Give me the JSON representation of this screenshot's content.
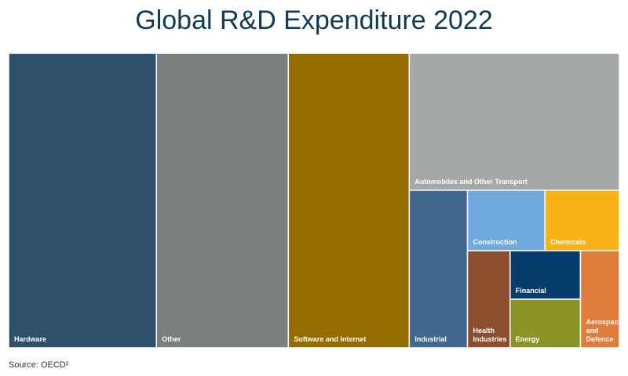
{
  "chart_data": {
    "type": "treemap",
    "title": "Global R&D Expenditure 2022",
    "source": "Source: OECD²",
    "categories": [
      "Hardware",
      "Other",
      "Software and Internet",
      "Automobiles and Other Transport",
      "Industrial",
      "Construction",
      "Chemicals",
      "Health Industries",
      "Financial",
      "Energy",
      "Aerospace and Defence"
    ],
    "values": [
      24.2,
      21.6,
      19.8,
      16.0,
      5.1,
      2.6,
      2.5,
      2.3,
      1.9,
      1.9,
      2.1
    ],
    "colors": [
      "#2f4f6b",
      "#7b7e7e",
      "#946c00",
      "#a5a8a8",
      "#41678c",
      "#6fa8dc",
      "#f9b319",
      "#8c4e2e",
      "#063d6b",
      "#8b9427",
      "#e07c3c"
    ]
  }
}
